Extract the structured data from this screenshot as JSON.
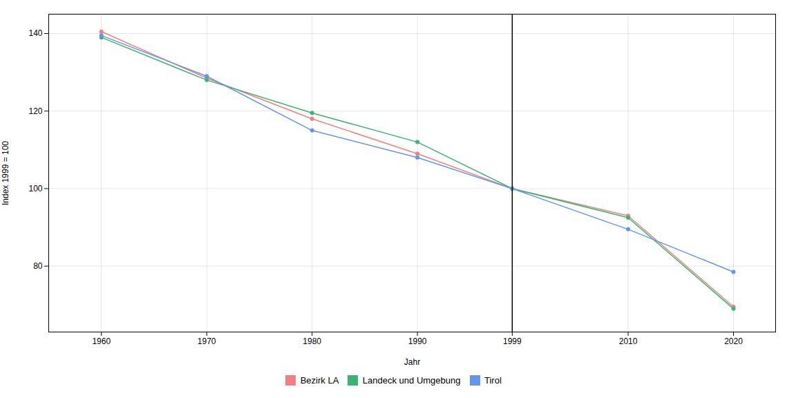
{
  "chart_data": {
    "type": "line",
    "x": [
      1960,
      1970,
      1980,
      1990,
      1999,
      2010,
      2020
    ],
    "series": [
      {
        "name": "Bezirk LA",
        "color": "#F08080",
        "values": [
          140.5,
          128.5,
          118.0,
          109.0,
          100.0,
          93.0,
          69.5
        ]
      },
      {
        "name": "Landeck und Umgebung",
        "color": "#3CB371",
        "values": [
          139.0,
          128.0,
          119.5,
          112.0,
          100.0,
          92.5,
          69.0
        ]
      },
      {
        "name": "Tirol",
        "color": "#6495ED",
        "values": [
          139.5,
          129.0,
          115.0,
          108.0,
          100.0,
          89.5,
          78.5
        ]
      }
    ],
    "x_label": "Jahr",
    "y_label": "Index 1999 = 100",
    "vline": 1999,
    "xlim": [
      1955,
      2024
    ],
    "xticks": [
      1960,
      1970,
      1980,
      1990,
      1999,
      2010,
      2020
    ],
    "ylim": [
      63,
      145
    ],
    "yticks": [
      80,
      100,
      120,
      140
    ],
    "grid": true,
    "legend": "bottom",
    "marker": "circle"
  }
}
